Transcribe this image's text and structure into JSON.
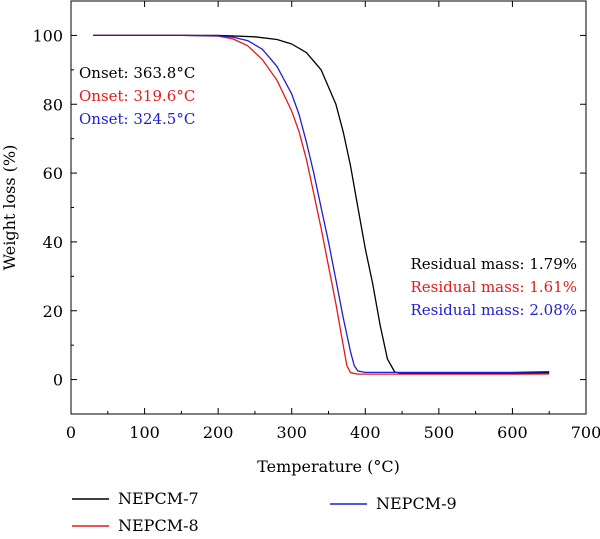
{
  "chart_data": {
    "type": "line",
    "xlabel": "Temperature (°C)",
    "ylabel": "Weight loss (%)",
    "xlim": [
      0,
      700
    ],
    "ylim": [
      -10,
      110
    ],
    "xticks": [
      0,
      100,
      200,
      300,
      400,
      500,
      600,
      700
    ],
    "yticks": [
      0,
      20,
      40,
      60,
      80,
      100
    ],
    "grid": false,
    "legend": "bottom",
    "series": [
      {
        "name": "NEPCM-7",
        "color": "#000000",
        "x": [
          30,
          150,
          200,
          250,
          280,
          300,
          320,
          340,
          360,
          370,
          380,
          390,
          400,
          410,
          420,
          430,
          440,
          450,
          500,
          550,
          600,
          650
        ],
        "y": [
          100,
          100,
          100,
          99.6,
          98.8,
          97.5,
          95,
          90,
          80,
          72,
          62,
          50,
          38,
          28,
          16,
          6,
          2.2,
          1.8,
          1.8,
          1.9,
          1.9,
          2.0
        ]
      },
      {
        "name": "NEPCM-8",
        "color": "#e41a1c",
        "x": [
          30,
          150,
          200,
          220,
          240,
          260,
          280,
          300,
          310,
          320,
          330,
          340,
          350,
          360,
          370,
          375,
          380,
          390,
          400,
          500,
          600,
          650
        ],
        "y": [
          100,
          100,
          99.8,
          99,
          97,
          93,
          87,
          78,
          72,
          64,
          54,
          44,
          33,
          22,
          10,
          4,
          2.0,
          1.6,
          1.6,
          1.6,
          1.6,
          1.61
        ]
      },
      {
        "name": "NEPCM-9",
        "color": "#1f1fcf",
        "x": [
          30,
          150,
          200,
          220,
          240,
          260,
          280,
          300,
          310,
          320,
          330,
          340,
          350,
          360,
          370,
          380,
          385,
          390,
          400,
          500,
          600,
          650
        ],
        "y": [
          100,
          100,
          99.9,
          99.5,
          98.5,
          96,
          91,
          83,
          77,
          69,
          60,
          50,
          40,
          29,
          18,
          8,
          4,
          2.5,
          2.1,
          2.1,
          2.1,
          2.3
        ]
      }
    ],
    "annotations": {
      "onset": [
        {
          "text": "Onset: 363.8°C",
          "color": "#000000"
        },
        {
          "text": "Onset: 319.6°C",
          "color": "#e41a1c"
        },
        {
          "text": "Onset: 324.5°C",
          "color": "#1f1fcf"
        }
      ],
      "residual": [
        {
          "text": "Residual mass: 1.79%",
          "color": "#000000"
        },
        {
          "text": "Residual mass: 1.61%",
          "color": "#e41a1c"
        },
        {
          "text": "Residual mass: 2.08%",
          "color": "#1f1fcf"
        }
      ]
    }
  }
}
